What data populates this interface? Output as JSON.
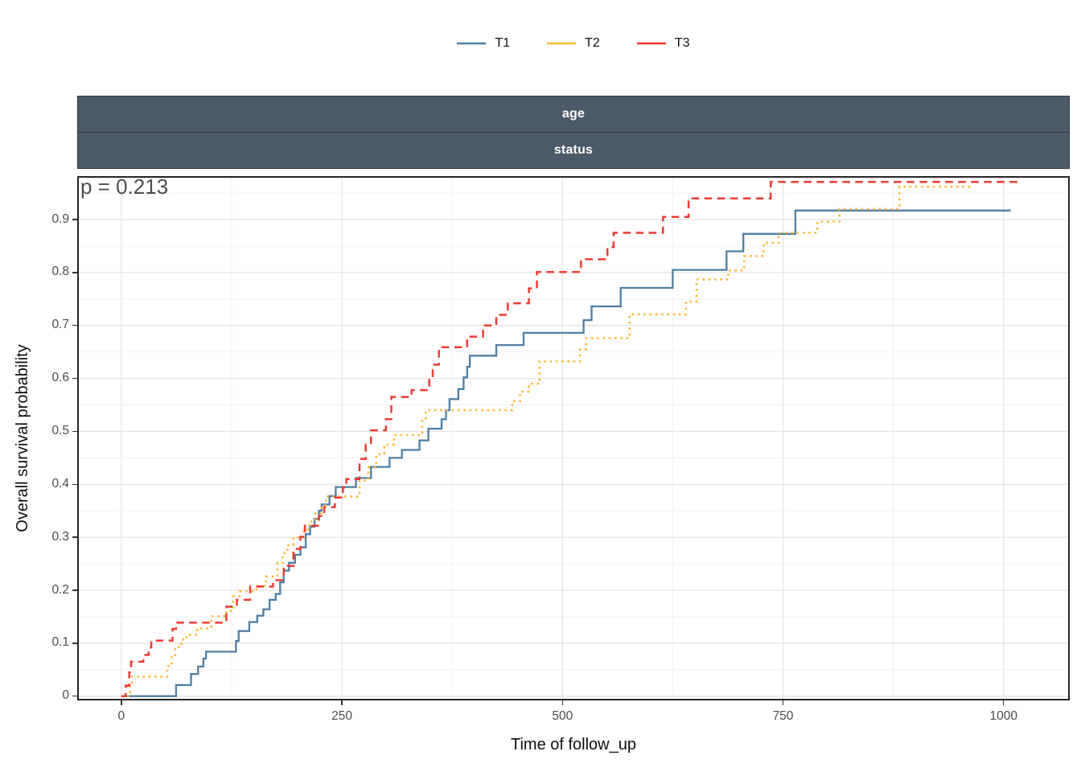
{
  "annotations": {
    "p_value": "p = 0.213"
  },
  "facets": {
    "strip_fill": "#4B5A68",
    "strip_text_color": "#FFFFFF",
    "strips": [
      {
        "label": "age"
      },
      {
        "label": "status"
      }
    ]
  },
  "chart_data": {
    "type": "line",
    "subtype": "step-cumulative-survival",
    "title": "",
    "xlabel": "Time of follow_up",
    "ylabel": "Overall survival probability",
    "p_value_text": "p = 0.213",
    "facet_labels": [
      "age",
      "status"
    ],
    "legend_position": "top",
    "grid": {
      "on": true,
      "major_color": "#E3E3E3",
      "minor_color": "#F0F0F0"
    },
    "panel_border_color": "#262626",
    "axis_text_color": "#4D4D4D",
    "x_domain": [
      -50,
      1075
    ],
    "y_domain": [
      -0.008,
      0.982
    ],
    "xlim": [
      0,
      1020
    ],
    "ylim": [
      0,
      1
    ],
    "x_ticks": {
      "values": [
        0,
        250,
        500,
        750,
        1000
      ],
      "labels": [
        "0",
        "250",
        "500",
        "750",
        "1000"
      ]
    },
    "y_ticks": {
      "values": [
        0,
        0.1,
        0.2,
        0.3,
        0.4,
        0.5,
        0.6,
        0.7,
        0.8,
        0.9
      ],
      "labels": [
        "0",
        "0.1",
        "0.2",
        "0.3",
        "0.4",
        "0.5",
        "0.6",
        "0.7",
        "0.8",
        "0.9"
      ]
    },
    "x_minor": [
      125,
      375,
      625,
      875
    ],
    "y_minor": [
      0.05,
      0.15,
      0.25,
      0.35,
      0.45,
      0.55,
      0.65,
      0.75,
      0.85,
      0.95
    ],
    "series": [
      {
        "name": "T1",
        "color": "#4E7EA3",
        "dash": "none",
        "linewidth": 2.3,
        "points": [
          [
            0,
            0
          ],
          [
            62,
            0.021
          ],
          [
            79,
            0.042
          ],
          [
            87,
            0.056
          ],
          [
            93,
            0.071
          ],
          [
            96,
            0.084
          ],
          [
            130,
            0.104
          ],
          [
            133,
            0.123
          ],
          [
            145,
            0.14
          ],
          [
            154,
            0.152
          ],
          [
            161,
            0.164
          ],
          [
            168,
            0.182
          ],
          [
            175,
            0.193
          ],
          [
            180,
            0.215
          ],
          [
            184,
            0.237
          ],
          [
            190,
            0.252
          ],
          [
            197,
            0.267
          ],
          [
            203,
            0.281
          ],
          [
            209,
            0.306
          ],
          [
            214,
            0.32
          ],
          [
            219,
            0.335
          ],
          [
            224,
            0.35
          ],
          [
            227,
            0.362
          ],
          [
            236,
            0.378
          ],
          [
            243,
            0.395
          ],
          [
            266,
            0.412
          ],
          [
            283,
            0.433
          ],
          [
            304,
            0.45
          ],
          [
            318,
            0.465
          ],
          [
            338,
            0.483
          ],
          [
            348,
            0.505
          ],
          [
            363,
            0.523
          ],
          [
            368,
            0.54
          ],
          [
            372,
            0.561
          ],
          [
            382,
            0.58
          ],
          [
            388,
            0.602
          ],
          [
            392,
            0.622
          ],
          [
            395,
            0.643
          ],
          [
            425,
            0.663
          ],
          [
            456,
            0.686
          ],
          [
            524,
            0.71
          ],
          [
            533,
            0.736
          ],
          [
            566,
            0.771
          ],
          [
            625,
            0.805
          ],
          [
            686,
            0.84
          ],
          [
            705,
            0.873
          ],
          [
            764,
            0.917
          ],
          [
            1008,
            0.917
          ]
        ]
      },
      {
        "name": "T2",
        "color": "#FBB73C",
        "dash": "2.5 4.8",
        "linewidth": 2.6,
        "points": [
          [
            0,
            0
          ],
          [
            10,
            0.019
          ],
          [
            12,
            0.037
          ],
          [
            52,
            0.057
          ],
          [
            57,
            0.075
          ],
          [
            61,
            0.093
          ],
          [
            68,
            0.107
          ],
          [
            74,
            0.116
          ],
          [
            86,
            0.128
          ],
          [
            102,
            0.151
          ],
          [
            119,
            0.161
          ],
          [
            127,
            0.189
          ],
          [
            134,
            0.198
          ],
          [
            153,
            0.208
          ],
          [
            164,
            0.226
          ],
          [
            177,
            0.252
          ],
          [
            183,
            0.27
          ],
          [
            188,
            0.285
          ],
          [
            195,
            0.3
          ],
          [
            207,
            0.315
          ],
          [
            213,
            0.33
          ],
          [
            220,
            0.345
          ],
          [
            227,
            0.36
          ],
          [
            232,
            0.377
          ],
          [
            270,
            0.407
          ],
          [
            280,
            0.432
          ],
          [
            289,
            0.457
          ],
          [
            298,
            0.475
          ],
          [
            309,
            0.493
          ],
          [
            341,
            0.52
          ],
          [
            345,
            0.54
          ],
          [
            443,
            0.557
          ],
          [
            452,
            0.575
          ],
          [
            462,
            0.59
          ],
          [
            474,
            0.632
          ],
          [
            520,
            0.655
          ],
          [
            527,
            0.676
          ],
          [
            576,
            0.721
          ],
          [
            640,
            0.745
          ],
          [
            652,
            0.787
          ],
          [
            688,
            0.804
          ],
          [
            706,
            0.831
          ],
          [
            728,
            0.856
          ],
          [
            745,
            0.875
          ],
          [
            789,
            0.896
          ],
          [
            814,
            0.92
          ],
          [
            882,
            0.962
          ],
          [
            962,
            0.962
          ]
        ]
      },
      {
        "name": "T3",
        "color": "#EE3B33",
        "dash": "9.5 6.5",
        "linewidth": 2.5,
        "points": [
          [
            0,
            0
          ],
          [
            5,
            0.02
          ],
          [
            9,
            0.045
          ],
          [
            11,
            0.065
          ],
          [
            25,
            0.078
          ],
          [
            31,
            0.092
          ],
          [
            34,
            0.105
          ],
          [
            58,
            0.127
          ],
          [
            62,
            0.139
          ],
          [
            119,
            0.169
          ],
          [
            131,
            0.182
          ],
          [
            146,
            0.207
          ],
          [
            172,
            0.219
          ],
          [
            184,
            0.246
          ],
          [
            195,
            0.278
          ],
          [
            203,
            0.301
          ],
          [
            208,
            0.322
          ],
          [
            224,
            0.34
          ],
          [
            230,
            0.357
          ],
          [
            242,
            0.375
          ],
          [
            251,
            0.394
          ],
          [
            255,
            0.41
          ],
          [
            270,
            0.448
          ],
          [
            277,
            0.475
          ],
          [
            283,
            0.502
          ],
          [
            300,
            0.523
          ],
          [
            306,
            0.565
          ],
          [
            329,
            0.578
          ],
          [
            349,
            0.602
          ],
          [
            353,
            0.626
          ],
          [
            360,
            0.659
          ],
          [
            392,
            0.679
          ],
          [
            410,
            0.7
          ],
          [
            425,
            0.72
          ],
          [
            438,
            0.742
          ],
          [
            462,
            0.77
          ],
          [
            471,
            0.801
          ],
          [
            521,
            0.825
          ],
          [
            551,
            0.848
          ],
          [
            558,
            0.875
          ],
          [
            614,
            0.905
          ],
          [
            643,
            0.94
          ],
          [
            736,
            0.971
          ],
          [
            1018,
            0.971
          ]
        ]
      }
    ]
  }
}
